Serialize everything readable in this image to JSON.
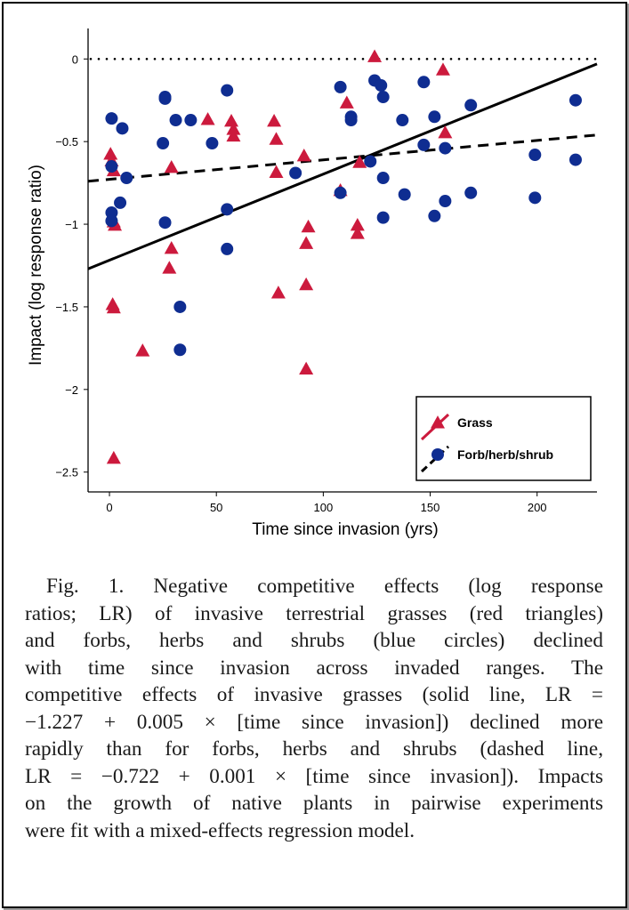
{
  "chart_data": {
    "type": "scatter",
    "xlabel": "Time since invasion (yrs)",
    "ylabel": "Impact (log response ratio)",
    "xlim": [
      -10,
      228
    ],
    "ylim": [
      -2.62,
      0.12
    ],
    "x_ticks": [
      0,
      50,
      100,
      150,
      200
    ],
    "x_tick_labels": [
      "0",
      "50",
      "100",
      "150",
      "200"
    ],
    "y_ticks": [
      0,
      -0.5,
      -1,
      -1.5,
      -2,
      -2.5
    ],
    "y_tick_labels": [
      "0",
      "−0.5",
      "−1",
      "−1.5",
      "−2",
      "−2.5"
    ],
    "reference_line": {
      "y": 0,
      "style": "dotted"
    },
    "legend_position": "bottom-right",
    "colors": {
      "grass": "#cc1a3d",
      "forb": "#0f2d91"
    },
    "series": [
      {
        "name": "Grass",
        "marker": "triangle",
        "color": "#cc1a3d",
        "points": [
          [
            0.5,
            -0.58
          ],
          [
            1,
            -0.62
          ],
          [
            2,
            -0.68
          ],
          [
            2,
            -0.99
          ],
          [
            2.5,
            -1.01
          ],
          [
            1.5,
            -1.49
          ],
          [
            2,
            -1.51
          ],
          [
            2,
            -2.42
          ],
          [
            15.5,
            -1.77
          ],
          [
            29,
            -0.66
          ],
          [
            29,
            -1.15
          ],
          [
            28,
            -1.27
          ],
          [
            46,
            -0.37
          ],
          [
            57,
            -0.38
          ],
          [
            58,
            -0.43
          ],
          [
            58,
            -0.47
          ],
          [
            77,
            -0.38
          ],
          [
            78,
            -0.49
          ],
          [
            78,
            -0.69
          ],
          [
            79,
            -1.42
          ],
          [
            91,
            -0.59
          ],
          [
            93,
            -1.02
          ],
          [
            92,
            -1.12
          ],
          [
            92,
            -1.37
          ],
          [
            92,
            -1.88
          ],
          [
            108,
            -0.8
          ],
          [
            111,
            -0.27
          ],
          [
            117,
            -0.63
          ],
          [
            116,
            -1.01
          ],
          [
            116,
            -1.06
          ],
          [
            124,
            0.01
          ],
          [
            156,
            -0.07
          ],
          [
            157,
            -0.45
          ]
        ]
      },
      {
        "name": "Forb/herb/shrub",
        "marker": "circle",
        "color": "#0f2d91",
        "points": [
          [
            1,
            -0.36
          ],
          [
            1,
            -0.65
          ],
          [
            1,
            -0.93
          ],
          [
            1,
            -0.98
          ],
          [
            6,
            -0.42
          ],
          [
            5,
            -0.87
          ],
          [
            8,
            -0.72
          ],
          [
            26,
            -0.23
          ],
          [
            26,
            -0.24
          ],
          [
            25,
            -0.51
          ],
          [
            26,
            -0.99
          ],
          [
            31,
            -0.37
          ],
          [
            33,
            -1.5
          ],
          [
            33,
            -1.76
          ],
          [
            38,
            -0.37
          ],
          [
            48,
            -0.51
          ],
          [
            55,
            -0.19
          ],
          [
            55,
            -0.91
          ],
          [
            55,
            -1.15
          ],
          [
            87,
            -0.69
          ],
          [
            108,
            -0.17
          ],
          [
            108,
            -0.81
          ],
          [
            113,
            -0.35
          ],
          [
            113,
            -0.37
          ],
          [
            122,
            -0.62
          ],
          [
            124,
            -0.13
          ],
          [
            127,
            -0.16
          ],
          [
            128,
            -0.23
          ],
          [
            128,
            -0.72
          ],
          [
            128,
            -0.96
          ],
          [
            137,
            -0.37
          ],
          [
            138,
            -0.82
          ],
          [
            147,
            -0.14
          ],
          [
            147,
            -0.52
          ],
          [
            152,
            -0.35
          ],
          [
            152,
            -0.95
          ],
          [
            157,
            -0.54
          ],
          [
            157,
            -0.86
          ],
          [
            169,
            -0.28
          ],
          [
            169,
            -0.81
          ],
          [
            199,
            -0.58
          ],
          [
            199,
            -0.84
          ],
          [
            218,
            -0.25
          ],
          [
            218,
            -0.61
          ]
        ]
      }
    ],
    "fits": [
      {
        "series": "Grass",
        "style": "solid",
        "x_range": [
          -10,
          228
        ],
        "y_range": [
          -1.27,
          -0.03
        ]
      },
      {
        "series": "Forb/herb/shrub",
        "style": "dashed",
        "x_range": [
          -10,
          228
        ],
        "y_range": [
          -0.74,
          -0.46
        ]
      }
    ]
  },
  "caption_lines": [
    "Fig. 1. Negative competitive effects (log response",
    "ratios; LR) of invasive terrestrial grasses (red triangles)",
    "and forbs, herbs and shrubs (blue circles) declined",
    "with time since invasion across invaded ranges. The",
    "competitive effects of invasive grasses (solid line, LR =",
    "−1.227 + 0.005 × [time since invasion]) declined more",
    "rapidly than for forbs, herbs and shrubs (dashed line,",
    "LR = −0.722 + 0.001 × [time since invasion]). Impacts",
    "on the growth of native plants in pairwise experiments",
    "were fit with a mixed-effects regression model."
  ]
}
